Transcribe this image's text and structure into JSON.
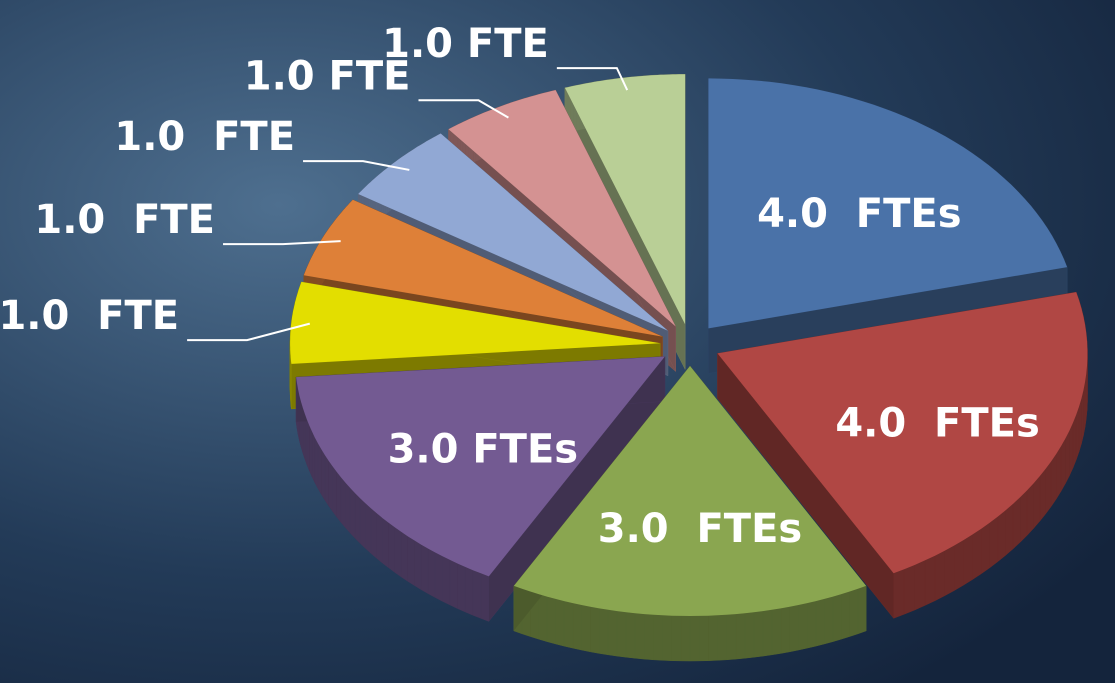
{
  "chart_data": {
    "type": "pie",
    "values": [
      4,
      4,
      3,
      3,
      1,
      1,
      1,
      1,
      1
    ],
    "value_labels": [
      "4.0  FTEs",
      "4.0  FTEs",
      "3.0  FTEs",
      "3.0 FTEs",
      "1.0  FTE",
      "1.0  FTE",
      "1.0  FTE",
      "1.0 FTE",
      "1.0 FTE"
    ],
    "colors": [
      "#4a72a8",
      "#b04744",
      "#8aa650",
      "#735a92",
      "#e3de00",
      "#de8038",
      "#91a8d4",
      "#d49292",
      "#b9cf96"
    ]
  }
}
